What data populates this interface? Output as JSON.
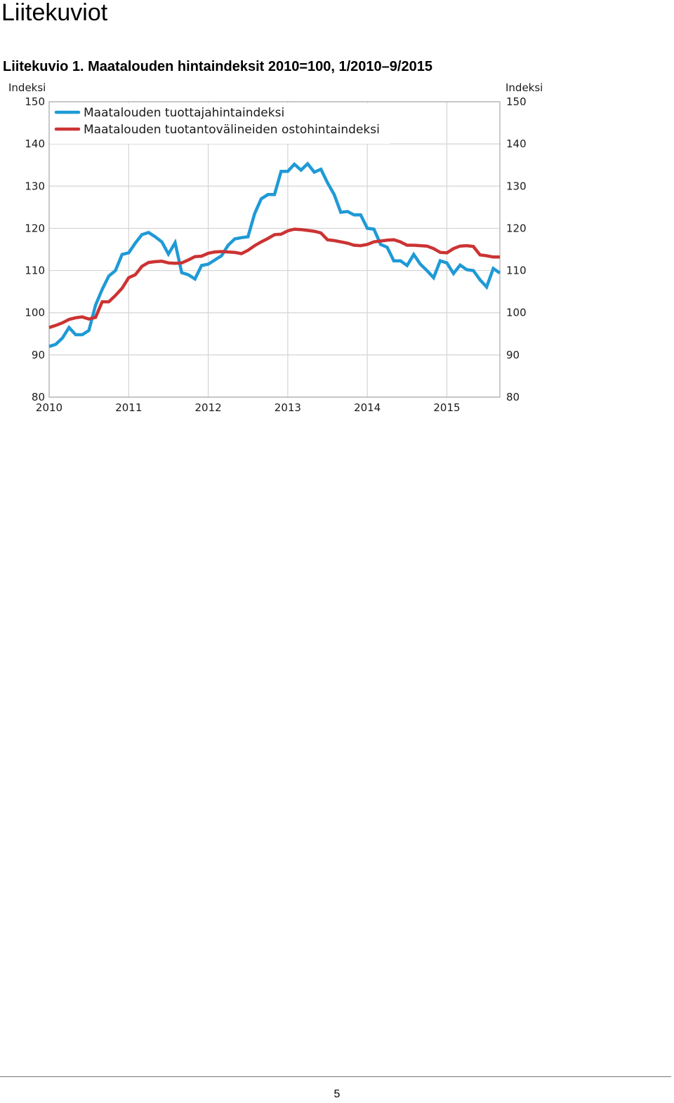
{
  "page": {
    "heading": "Liitekuviot",
    "figure_caption": "Liitekuvio 1. Maatalouden hintaindeksit 2010=100, 1/2010–9/2015",
    "page_number": "5"
  },
  "chart_data": {
    "type": "line",
    "left_axis_label": "Indeksi",
    "right_axis_label": "Indeksi",
    "ylim": [
      80,
      150
    ],
    "y_ticks": [
      80,
      90,
      100,
      110,
      120,
      130,
      140,
      150
    ],
    "x_ticks": [
      "2010",
      "2011",
      "2012",
      "2013",
      "2014",
      "2015"
    ],
    "x_start": "2010-01",
    "x_end": "2015-09",
    "grid": true,
    "legend_position": "top-left",
    "series": [
      {
        "name": "Maatalouden tuottajahintaindeksi",
        "color": "#1f9ad6",
        "values": [
          92.0,
          92.5,
          94.0,
          96.5,
          94.8,
          94.8,
          95.8,
          101.8,
          105.5,
          108.7,
          110.0,
          113.8,
          114.2,
          116.5,
          118.5,
          119.0,
          118.0,
          116.8,
          113.9,
          116.6,
          109.5,
          109.0,
          108.0,
          111.2,
          111.5,
          112.5,
          113.5,
          116.0,
          117.5,
          117.8,
          118.0,
          123.5,
          127.0,
          128.0,
          128.0,
          133.5,
          133.5,
          135.2,
          133.8,
          135.3,
          133.3,
          134.0,
          130.8,
          128.0,
          123.8,
          124.0,
          123.2,
          123.2,
          120.0,
          119.8,
          116.2,
          115.5,
          112.3,
          112.3,
          111.2,
          113.8,
          111.5,
          110.0,
          108.3,
          112.3,
          111.8,
          109.3,
          111.3,
          110.2,
          110.0,
          107.8,
          106.1,
          110.5,
          109.4
        ]
      },
      {
        "name": "Maatalouden tuotantovälineiden ostohintaindeksi",
        "color": "#cc3333",
        "values": [
          96.5,
          97.0,
          97.6,
          98.4,
          98.8,
          99.0,
          98.5,
          98.9,
          102.6,
          102.6,
          104.1,
          105.8,
          108.3,
          109.0,
          111.0,
          111.9,
          112.1,
          112.2,
          111.8,
          111.7,
          111.8,
          112.5,
          113.3,
          113.4,
          114.1,
          114.4,
          114.5,
          114.4,
          114.3,
          114.0,
          114.8,
          115.9,
          116.8,
          117.6,
          118.5,
          118.6,
          119.4,
          119.8,
          119.7,
          119.5,
          119.3,
          118.9,
          117.3,
          117.1,
          116.8,
          116.5,
          116.0,
          115.9,
          116.2,
          116.8,
          117.0,
          117.2,
          117.3,
          116.8,
          116.0,
          116.0,
          115.9,
          115.8,
          115.2,
          114.3,
          114.2,
          115.2,
          115.8,
          115.9,
          115.7,
          113.7,
          113.5,
          113.2,
          113.2
        ]
      }
    ]
  }
}
